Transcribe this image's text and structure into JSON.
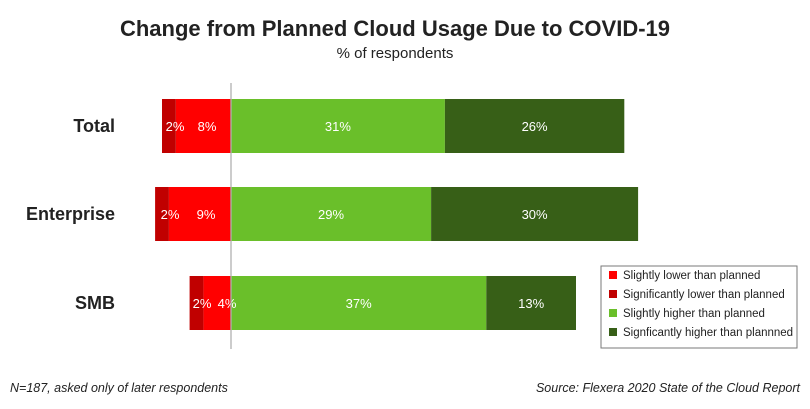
{
  "chart_data": {
    "type": "bar",
    "orientation": "horizontal",
    "stacked": "diverging",
    "title": "Change from Planned Cloud Usage Due to COVID-19",
    "subtitle": "% of respondents",
    "categories": [
      "Total",
      "Enterprise",
      "SMB"
    ],
    "series": [
      {
        "name": "Slightly lower than planned",
        "color": "#ff0000",
        "direction": "negative",
        "values": [
          8,
          9,
          4
        ]
      },
      {
        "name": "Significantly lower than planned",
        "color": "#c00000",
        "direction": "negative",
        "values": [
          2,
          2,
          2
        ]
      },
      {
        "name": "Slightly higher than planned",
        "color": "#6abf2a",
        "direction": "positive",
        "values": [
          31,
          29,
          37
        ]
      },
      {
        "name": "Signficantly higher than plannned",
        "color": "#375f17",
        "direction": "positive",
        "values": [
          26,
          30,
          13
        ]
      }
    ],
    "value_suffix": "%",
    "legend_position": "bottom-right",
    "grid": false
  },
  "footer": {
    "note": "N=187, asked only of later respondents",
    "source": "Source: Flexera 2020 State of the Cloud Report"
  }
}
